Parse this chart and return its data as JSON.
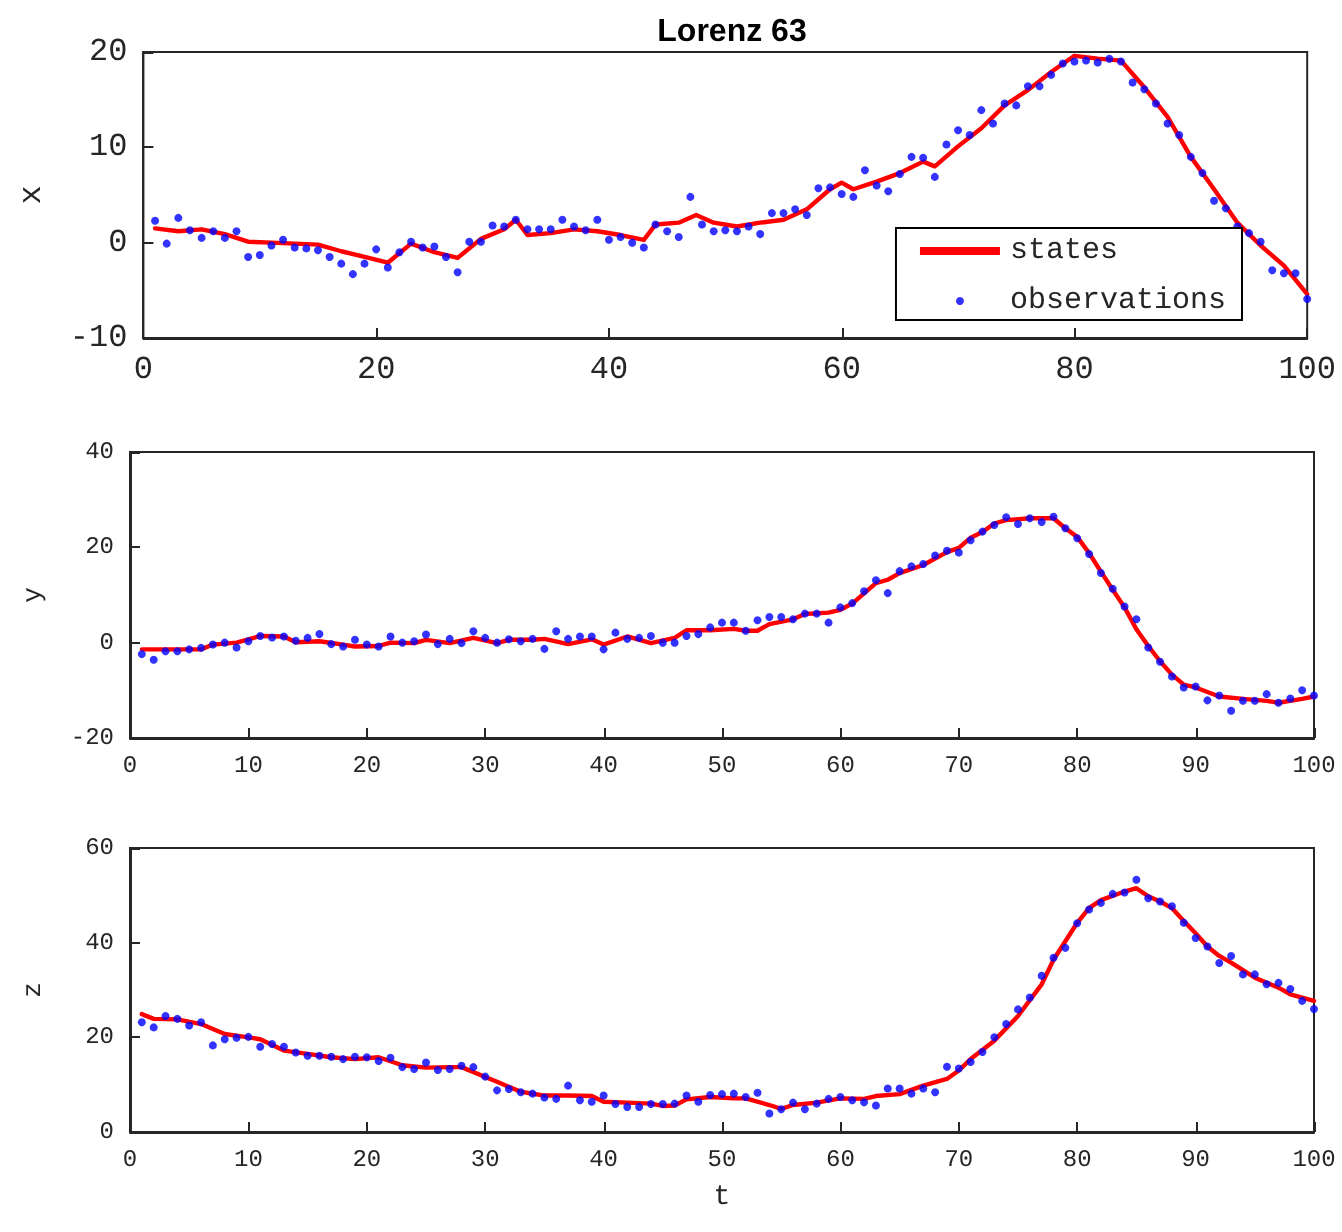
{
  "chart_data": [
    {
      "type": "line",
      "title": "Lorenz 63",
      "ylabel": "x",
      "legend": "bottom right",
      "x": [
        1,
        2,
        3,
        4,
        5,
        6,
        7,
        8,
        9,
        10,
        11,
        12,
        13,
        14,
        15,
        16,
        17,
        18,
        19,
        20,
        21,
        22,
        23,
        24,
        25,
        26,
        27,
        28,
        29,
        30,
        31,
        32,
        33,
        34,
        35,
        36,
        37,
        38,
        39,
        40,
        41,
        42,
        43,
        44,
        45,
        46,
        47,
        48,
        49,
        50,
        51,
        52,
        53,
        54,
        55,
        56,
        57,
        58,
        59,
        60,
        61,
        62,
        63,
        64,
        65,
        66,
        67,
        68,
        69,
        70,
        71,
        72,
        73,
        74,
        75,
        76,
        77,
        78,
        79,
        80,
        81,
        82,
        83,
        84,
        85,
        86,
        87,
        88,
        89,
        90,
        91,
        92,
        93,
        94,
        95,
        96,
        97,
        98,
        99,
        100
      ],
      "xlim": [
        0,
        100
      ],
      "xticks": [
        0,
        20,
        40,
        60,
        80,
        100
      ],
      "ylim": [
        -10,
        20
      ],
      "yticks": [
        -10,
        0,
        10,
        20
      ],
      "series": [
        {
          "name": "states",
          "color": "#ff0000",
          "x": [
            1,
            3,
            5,
            7,
            9,
            11,
            13,
            15,
            17,
            19,
            21,
            23,
            25,
            27,
            29,
            31,
            32,
            33,
            35,
            37,
            39,
            41,
            43,
            44,
            46,
            47.5,
            49,
            51,
            53,
            55,
            57,
            59,
            60,
            61,
            63,
            65,
            67,
            68,
            70,
            72,
            74,
            76,
            78,
            80,
            82,
            84,
            86,
            88,
            90,
            92,
            94,
            96,
            98,
            100
          ],
          "values": [
            1.5,
            1.2,
            1.4,
            0.9,
            0.1,
            0,
            -0.1,
            -0.2,
            -0.9,
            -1.5,
            -2.1,
            -0.1,
            -1.0,
            -1.6,
            0.4,
            1.4,
            2.4,
            0.8,
            1.0,
            1.4,
            1.2,
            0.8,
            0.3,
            1.9,
            2.1,
            2.9,
            2.1,
            1.7,
            2.1,
            2.4,
            3.5,
            5.6,
            6.3,
            5.6,
            6.4,
            7.3,
            8.5,
            8.0,
            10.1,
            12.0,
            14.4,
            16,
            17.9,
            19.6,
            19.3,
            19.1,
            16.3,
            13.2,
            9.0,
            5.6,
            2.1,
            -0.3,
            -2.4,
            -5.4
          ]
        },
        {
          "name": "observations",
          "type": "scatter",
          "color": "#0000ff",
          "marker": "circle",
          "values": [
            2.3,
            -0.1,
            2.6,
            1.3,
            0.5,
            1.2,
            0.5,
            1.2,
            -1.5,
            -1.3,
            -0.3,
            0.3,
            -0.5,
            -0.6,
            -0.8,
            -1.5,
            -2.2,
            -3.3,
            -2.2,
            -0.7,
            -2.6,
            -1.0,
            0.1,
            -0.5,
            -0.4,
            -1.5,
            -3.1,
            0.1,
            0.1,
            1.8,
            1.7,
            2.4,
            1.4,
            1.4,
            1.4,
            2.4,
            1.7,
            1.3,
            2.4,
            0.3,
            0.6,
            0,
            -0.5,
            1.9,
            1.2,
            0.6,
            4.8,
            1.9,
            1.2,
            1.3,
            1.2,
            1.7,
            0.9,
            3.1,
            3.1,
            3.5,
            2.9,
            5.7,
            5.8,
            5.1,
            4.8,
            7.6,
            6.0,
            5.4,
            7.2,
            9.0,
            8.9,
            6.9,
            10.3,
            11.8,
            11.3,
            13.9,
            12.5,
            14.6,
            14.4,
            16.4,
            16.4,
            17.6,
            18.8,
            19.0,
            19.1,
            18.9,
            19.3,
            19.0,
            16.8,
            16.1,
            14.6,
            12.5,
            11.3,
            9.0,
            7.3,
            4.4,
            3.6,
            1.7,
            1.0,
            0.1,
            -2.9,
            -3.2,
            -3.2,
            -5.9
          ]
        }
      ]
    },
    {
      "type": "line",
      "ylabel": "y",
      "x": [
        1,
        2,
        3,
        4,
        5,
        6,
        7,
        8,
        9,
        10,
        11,
        12,
        13,
        14,
        15,
        16,
        17,
        18,
        19,
        20,
        21,
        22,
        23,
        24,
        25,
        26,
        27,
        28,
        29,
        30,
        31,
        32,
        33,
        34,
        35,
        36,
        37,
        38,
        39,
        40,
        41,
        42,
        43,
        44,
        45,
        46,
        47,
        48,
        49,
        50,
        51,
        52,
        53,
        54,
        55,
        56,
        57,
        58,
        59,
        60,
        61,
        62,
        63,
        64,
        65,
        66,
        67,
        68,
        69,
        70,
        71,
        72,
        73,
        74,
        75,
        76,
        77,
        78,
        79,
        80,
        81,
        82,
        83,
        84,
        85,
        86,
        87,
        88,
        89,
        90,
        91,
        92,
        93,
        94,
        95,
        96,
        97,
        98,
        99,
        100
      ],
      "xlim": [
        0,
        100
      ],
      "xticks": [
        0,
        10,
        20,
        30,
        40,
        50,
        60,
        70,
        80,
        90,
        100
      ],
      "ylim": [
        -20,
        40
      ],
      "yticks": [
        -20,
        0,
        20,
        40
      ],
      "series": [
        {
          "color": "#ff0000",
          "x": [
            1,
            6,
            7,
            9,
            11,
            13,
            14,
            16,
            18,
            19,
            21,
            22,
            24,
            25,
            27,
            29,
            31,
            32,
            34,
            35,
            37,
            39,
            40,
            42,
            44,
            46,
            47,
            49,
            51,
            52,
            53,
            54,
            56,
            57,
            59,
            60,
            61,
            63,
            64,
            65,
            67,
            69,
            70,
            71,
            72,
            73,
            74,
            76,
            78,
            79,
            80,
            81,
            82,
            83,
            84,
            85,
            86,
            87,
            88,
            89,
            90,
            92,
            94,
            96,
            97,
            99,
            100
          ],
          "values": [
            -1.4,
            -1.4,
            -0.4,
            0,
            1.4,
            1.3,
            0.1,
            0.3,
            -0.4,
            -0.8,
            -0.7,
            0,
            -0.1,
            0.6,
            -0.1,
            1.0,
            -0.1,
            0.6,
            0.6,
            0.8,
            -0.3,
            0.7,
            -0.4,
            1.3,
            -0.1,
            1.0,
            2.6,
            2.6,
            2.9,
            2.5,
            2.5,
            3.9,
            4.9,
            6.0,
            6.3,
            6.9,
            8.2,
            12.5,
            13.2,
            14.6,
            16.3,
            19.0,
            19.9,
            22,
            23.2,
            25,
            25.7,
            26.1,
            26.1,
            24.0,
            22.2,
            18.8,
            14.9,
            11.1,
            7.4,
            2.8,
            -0.7,
            -3.9,
            -6.7,
            -8.8,
            -9.4,
            -11.3,
            -11.8,
            -12.2,
            -12.6,
            -11.8,
            -11.3
          ]
        },
        {
          "type": "scatter",
          "color": "#0000ff",
          "marker": "circle",
          "values": [
            -2.4,
            -3.6,
            -1.8,
            -1.8,
            -1.4,
            -1.1,
            -0.4,
            0,
            -1.0,
            0.3,
            1.4,
            1.1,
            1.3,
            0.4,
            1.0,
            1.8,
            -0.3,
            -0.8,
            0.6,
            -0.4,
            -0.8,
            1.3,
            0,
            0.3,
            1.7,
            -0.3,
            0.8,
            -0.1,
            2.4,
            1.0,
            0,
            0.7,
            0.3,
            0.8,
            -1.3,
            2.4,
            0.8,
            1.3,
            1.3,
            -1.4,
            2.1,
            0.8,
            1.0,
            1.4,
            0,
            0,
            1.4,
            1.8,
            3.2,
            4.2,
            4.2,
            2.5,
            4.7,
            5.4,
            5.4,
            4.9,
            6.1,
            6.1,
            4.2,
            7.4,
            8.3,
            10.8,
            13.1,
            10.4,
            15,
            16,
            16.5,
            18.3,
            19.3,
            18.9,
            21.5,
            23.3,
            24.7,
            26.3,
            24.9,
            26.1,
            25.3,
            26.4,
            24.0,
            21.9,
            18.6,
            14.6,
            11.3,
            7.6,
            4.9,
            -1.0,
            -4.0,
            -7.1,
            -9.4,
            -9.2,
            -12.1,
            -11.1,
            -14.3,
            -12.2,
            -12.2,
            -10.8,
            -12.6,
            -11.7,
            -10.0,
            -11.1
          ]
        }
      ]
    },
    {
      "type": "line",
      "xlabel": "t",
      "ylabel": "z",
      "x": [
        1,
        2,
        3,
        4,
        5,
        6,
        7,
        8,
        9,
        10,
        11,
        12,
        13,
        14,
        15,
        16,
        17,
        18,
        19,
        20,
        21,
        22,
        23,
        24,
        25,
        26,
        27,
        28,
        29,
        30,
        31,
        32,
        33,
        34,
        35,
        36,
        37,
        38,
        39,
        40,
        41,
        42,
        43,
        44,
        45,
        46,
        47,
        48,
        49,
        50,
        51,
        52,
        53,
        54,
        55,
        56,
        57,
        58,
        59,
        60,
        61,
        62,
        63,
        64,
        65,
        66,
        67,
        68,
        69,
        70,
        71,
        72,
        73,
        74,
        75,
        76,
        77,
        78,
        79,
        80,
        81,
        82,
        83,
        84,
        85,
        86,
        87,
        88,
        89,
        90,
        91,
        92,
        93,
        94,
        95,
        96,
        97,
        98,
        99,
        100
      ],
      "xlim": [
        0,
        100
      ],
      "xticks": [
        0,
        10,
        20,
        30,
        40,
        50,
        60,
        70,
        80,
        90,
        100
      ],
      "ylim": [
        0,
        60
      ],
      "yticks": [
        0,
        20,
        40,
        60
      ],
      "series": [
        {
          "color": "#ff0000",
          "x": [
            1,
            2,
            4,
            6,
            8,
            10,
            11,
            13,
            15,
            17,
            19,
            21,
            23,
            25,
            27,
            28,
            30,
            31,
            33,
            35,
            37,
            39,
            40,
            42,
            44,
            45,
            46,
            47,
            49,
            51,
            52,
            54,
            55,
            56,
            58,
            60,
            62,
            63,
            65,
            67,
            69,
            70,
            71,
            73,
            75,
            77,
            78,
            79,
            80,
            81,
            82,
            84,
            85,
            86,
            87,
            88,
            89,
            90,
            91,
            92,
            93,
            95,
            97,
            98,
            100
          ],
          "values": [
            24.9,
            23.9,
            23.8,
            22.8,
            20.7,
            20.0,
            19.6,
            17.2,
            16.5,
            15.8,
            15.4,
            15.8,
            14.1,
            13.6,
            13.7,
            13.7,
            11.6,
            10.6,
            8.5,
            7.7,
            7.7,
            7.6,
            6.4,
            6.2,
            6.0,
            5.5,
            5.6,
            6.9,
            7.4,
            7.1,
            7.1,
            5.7,
            4.9,
            5.7,
            6.2,
            7.1,
            7.0,
            7.6,
            8.0,
            9.8,
            11.2,
            13.0,
            15.4,
            19.3,
            24.5,
            31.2,
            36.4,
            40.3,
            44.2,
            47.3,
            49.0,
            50.8,
            51.5,
            49.8,
            48.7,
            47.3,
            44.6,
            42.0,
            39.2,
            37.2,
            35.8,
            32.6,
            30.5,
            29.1,
            27.7
          ]
        },
        {
          "type": "scatter",
          "color": "#0000ff",
          "marker": "circle",
          "values": [
            23.2,
            22.1,
            24.5,
            23.9,
            22.5,
            23.2,
            18.3,
            19.6,
            19.9,
            20.1,
            18.0,
            18.6,
            18.0,
            16.8,
            16.1,
            16.1,
            15.9,
            15.4,
            15.9,
            15.8,
            15.0,
            15.7,
            13.7,
            13.3,
            14.7,
            13.1,
            13.3,
            14.0,
            13.7,
            11.7,
            8.8,
            9.1,
            8.4,
            8.1,
            7.3,
            7.0,
            9.8,
            6.7,
            6.4,
            7.7,
            5.9,
            5.3,
            5.3,
            5.9,
            5.9,
            6.0,
            7.7,
            6.4,
            7.8,
            8.0,
            8.1,
            7.4,
            8.3,
            3.9,
            4.8,
            6.2,
            4.8,
            6.0,
            7.0,
            7.4,
            6.7,
            6.3,
            5.6,
            9.2,
            9.2,
            8.1,
            9.2,
            8.4,
            13.8,
            13.4,
            14.8,
            16.9,
            20.0,
            22.8,
            25.9,
            28.4,
            33.0,
            36.8,
            38.9,
            44.1,
            47.0,
            48.4,
            50.3,
            50.6,
            53.3,
            49.4,
            48.7,
            47.7,
            44.2,
            41.0,
            39.2,
            35.7,
            37.2,
            33.3,
            33.3,
            31.2,
            31.5,
            30.2,
            27.7,
            26.0
          ]
        }
      ]
    }
  ]
}
